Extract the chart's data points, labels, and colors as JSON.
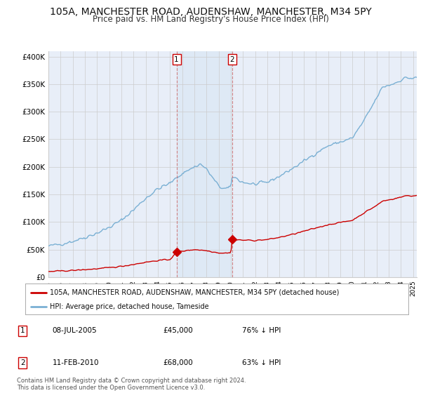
{
  "title_line1": "105A, MANCHESTER ROAD, AUDENSHAW, MANCHESTER, M34 5PY",
  "title_line2": "Price paid vs. HM Land Registry's House Price Index (HPI)",
  "title_fontsize": 10,
  "subtitle_fontsize": 8.5,
  "background_color": "#ffffff",
  "plot_bg_color": "#e8eef8",
  "shade_color": "#dde8f5",
  "ylim_max": 410000,
  "yticks": [
    0,
    50000,
    100000,
    150000,
    200000,
    250000,
    300000,
    350000,
    400000
  ],
  "ytick_labels": [
    "£0",
    "£50K",
    "£100K",
    "£150K",
    "£200K",
    "£250K",
    "£300K",
    "£350K",
    "£400K"
  ],
  "hpi_color": "#7ab0d4",
  "price_color": "#cc0000",
  "grid_color": "#cccccc",
  "sale1_x": 2005.54,
  "sale1_price": 45000,
  "sale2_x": 2010.12,
  "sale2_price": 68000,
  "legend_line1": "105A, MANCHESTER ROAD, AUDENSHAW, MANCHESTER, M34 5PY (detached house)",
  "legend_line2": "HPI: Average price, detached house, Tameside",
  "table_row1": [
    "1",
    "08-JUL-2005",
    "£45,000",
    "76% ↓ HPI"
  ],
  "table_row2": [
    "2",
    "11-FEB-2010",
    "£68,000",
    "63% ↓ HPI"
  ],
  "footnote": "Contains HM Land Registry data © Crown copyright and database right 2024.\nThis data is licensed under the Open Government Licence v3.0.",
  "xmin": 1995.0,
  "xmax": 2025.3
}
